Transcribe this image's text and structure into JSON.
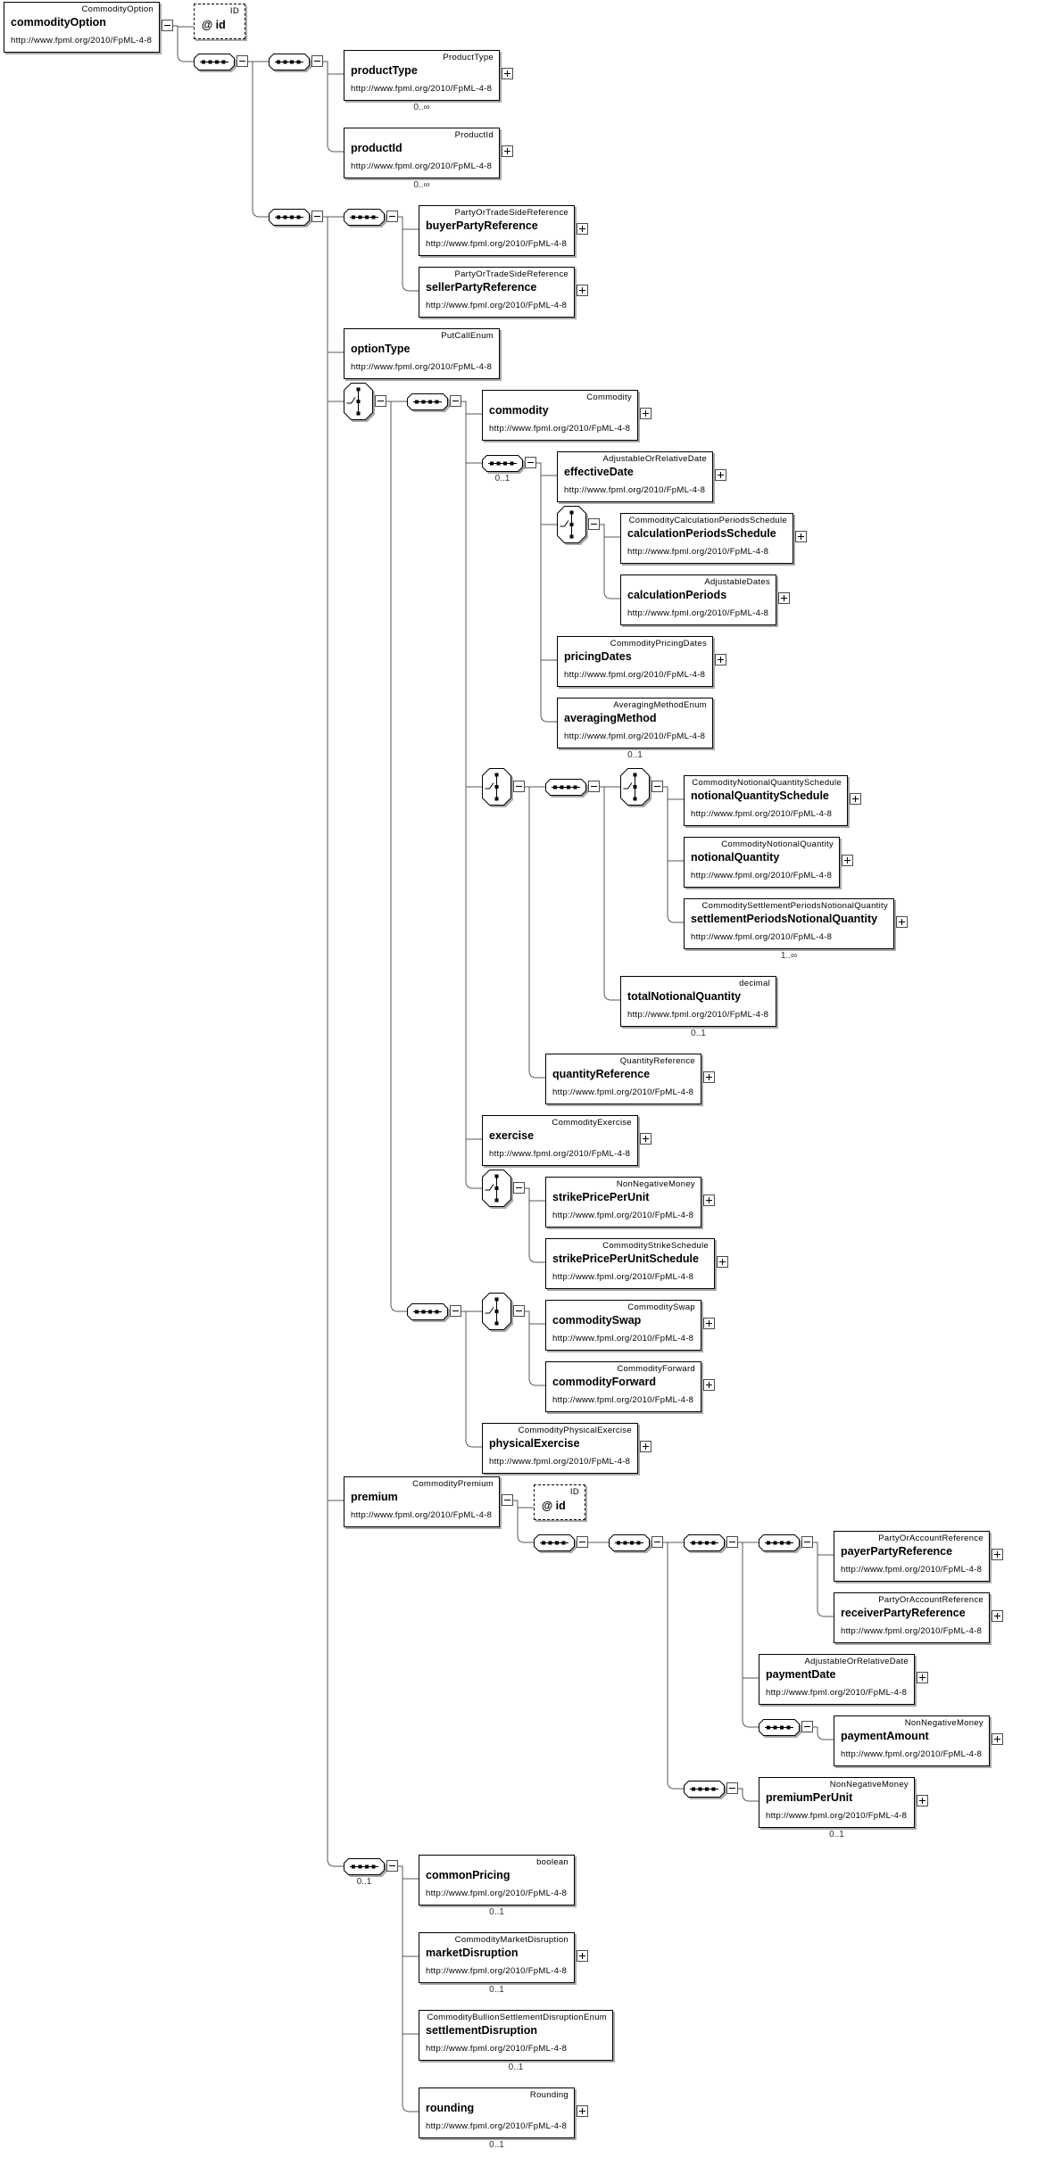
{
  "diagram": {
    "namespace": "http://www.fpml.org/2010/FpML-4-8",
    "root": {
      "kind": "element",
      "name": "commodityOption",
      "type": "CommodityOption",
      "children": [
        {
          "kind": "attribute",
          "name": "@ id",
          "type": "ID"
        },
        {
          "kind": "sequence",
          "children": [
            {
              "kind": "sequence",
              "children": [
                {
                  "kind": "element",
                  "name": "productType",
                  "type": "ProductType",
                  "expand": true,
                  "occurs": "0..∞"
                },
                {
                  "kind": "element",
                  "name": "productId",
                  "type": "ProductId",
                  "expand": true,
                  "occurs": "0..∞"
                }
              ]
            },
            {
              "kind": "sequence",
              "children": [
                {
                  "kind": "sequence",
                  "children": [
                    {
                      "kind": "element",
                      "name": "buyerPartyReference",
                      "type": "PartyOrTradeSideReference",
                      "expand": true
                    },
                    {
                      "kind": "element",
                      "name": "sellerPartyReference",
                      "type": "PartyOrTradeSideReference",
                      "expand": true
                    }
                  ]
                },
                {
                  "kind": "element",
                  "name": "optionType",
                  "type": "PutCallEnum"
                },
                {
                  "kind": "choice",
                  "children": [
                    {
                      "kind": "sequence",
                      "children": [
                        {
                          "kind": "element",
                          "name": "commodity",
                          "type": "Commodity",
                          "expand": true
                        },
                        {
                          "kind": "sequence",
                          "occurs": "0..1",
                          "children": [
                            {
                              "kind": "element",
                              "name": "effectiveDate",
                              "type": "AdjustableOrRelativeDate",
                              "expand": true
                            },
                            {
                              "kind": "choice",
                              "children": [
                                {
                                  "kind": "element",
                                  "name": "calculationPeriodsSchedule",
                                  "type": "CommodityCalculationPeriodsSchedule",
                                  "expand": true
                                },
                                {
                                  "kind": "element",
                                  "name": "calculationPeriods",
                                  "type": "AdjustableDates",
                                  "expand": true
                                }
                              ]
                            },
                            {
                              "kind": "element",
                              "name": "pricingDates",
                              "type": "CommodityPricingDates",
                              "expand": true
                            },
                            {
                              "kind": "element",
                              "name": "averagingMethod",
                              "type": "AveragingMethodEnum",
                              "occurs": "0..1"
                            }
                          ]
                        },
                        {
                          "kind": "choice",
                          "children": [
                            {
                              "kind": "sequence",
                              "children": [
                                {
                                  "kind": "choice",
                                  "children": [
                                    {
                                      "kind": "element",
                                      "name": "notionalQuantitySchedule",
                                      "type": "CommodityNotionalQuantitySchedule",
                                      "expand": true
                                    },
                                    {
                                      "kind": "element",
                                      "name": "notionalQuantity",
                                      "type": "CommodityNotionalQuantity",
                                      "expand": true
                                    },
                                    {
                                      "kind": "element",
                                      "name": "settlementPeriodsNotionalQuantity",
                                      "type": "CommoditySettlementPeriodsNotionalQuantity",
                                      "expand": true,
                                      "occurs": "1..∞"
                                    }
                                  ]
                                },
                                {
                                  "kind": "element",
                                  "name": "totalNotionalQuantity",
                                  "type": "decimal",
                                  "occurs": "0..1"
                                }
                              ]
                            },
                            {
                              "kind": "element",
                              "name": "quantityReference",
                              "type": "QuantityReference",
                              "expand": true
                            }
                          ]
                        },
                        {
                          "kind": "element",
                          "name": "exercise",
                          "type": "CommodityExercise",
                          "expand": true
                        },
                        {
                          "kind": "choice",
                          "children": [
                            {
                              "kind": "element",
                              "name": "strikePricePerUnit",
                              "type": "NonNegativeMoney",
                              "expand": true
                            },
                            {
                              "kind": "element",
                              "name": "strikePricePerUnitSchedule",
                              "type": "CommodityStrikeSchedule",
                              "expand": true
                            }
                          ]
                        }
                      ]
                    },
                    {
                      "kind": "sequence",
                      "children": [
                        {
                          "kind": "choice",
                          "children": [
                            {
                              "kind": "element",
                              "name": "commoditySwap",
                              "type": "CommoditySwap",
                              "expand": true
                            },
                            {
                              "kind": "element",
                              "name": "commodityForward",
                              "type": "CommodityForward",
                              "expand": true
                            }
                          ]
                        },
                        {
                          "kind": "element",
                          "name": "physicalExercise",
                          "type": "CommodityPhysicalExercise",
                          "expand": true
                        }
                      ]
                    }
                  ]
                },
                {
                  "kind": "element",
                  "name": "premium",
                  "type": "CommodityPremium",
                  "children": [
                    {
                      "kind": "attribute",
                      "name": "@ id",
                      "type": "ID"
                    },
                    {
                      "kind": "sequence",
                      "children": [
                        {
                          "kind": "sequence",
                          "children": [
                            {
                              "kind": "sequence",
                              "children": [
                                {
                                  "kind": "sequence",
                                  "children": [
                                    {
                                      "kind": "element",
                                      "name": "payerPartyReference",
                                      "type": "PartyOrAccountReference",
                                      "expand": true
                                    },
                                    {
                                      "kind": "element",
                                      "name": "receiverPartyReference",
                                      "type": "PartyOrAccountReference",
                                      "expand": true
                                    }
                                  ]
                                },
                                {
                                  "kind": "element",
                                  "name": "paymentDate",
                                  "type": "AdjustableOrRelativeDate",
                                  "expand": true
                                },
                                {
                                  "kind": "sequence",
                                  "children": [
                                    {
                                      "kind": "element",
                                      "name": "paymentAmount",
                                      "type": "NonNegativeMoney",
                                      "expand": true
                                    }
                                  ]
                                }
                              ]
                            },
                            {
                              "kind": "sequence",
                              "children": [
                                {
                                  "kind": "element",
                                  "name": "premiumPerUnit",
                                  "type": "NonNegativeMoney",
                                  "expand": true,
                                  "occurs": "0..1"
                                }
                              ]
                            }
                          ]
                        }
                      ]
                    }
                  ]
                },
                {
                  "kind": "sequence",
                  "occurs": "0..1",
                  "children": [
                    {
                      "kind": "element",
                      "name": "commonPricing",
                      "type": "boolean",
                      "occurs": "0..1"
                    },
                    {
                      "kind": "element",
                      "name": "marketDisruption",
                      "type": "CommodityMarketDisruption",
                      "expand": true,
                      "occurs": "0..1"
                    },
                    {
                      "kind": "element",
                      "name": "settlementDisruption",
                      "type": "CommodityBullionSettlementDisruptionEnum",
                      "occurs": "0..1"
                    },
                    {
                      "kind": "element",
                      "name": "rounding",
                      "type": "Rounding",
                      "expand": true,
                      "occurs": "0..1"
                    }
                  ]
                }
              ]
            }
          ]
        }
      ]
    }
  }
}
